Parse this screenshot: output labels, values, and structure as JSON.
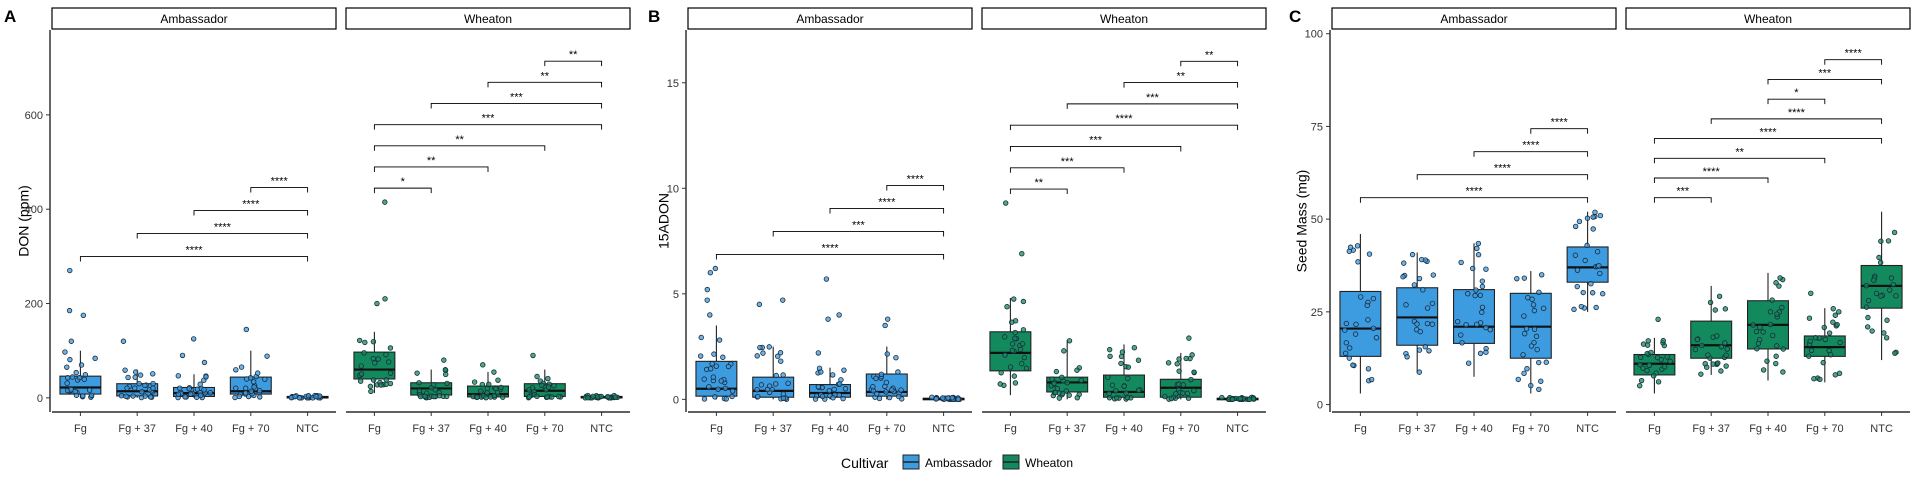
{
  "legend": {
    "title": "Cultivar",
    "items": [
      {
        "label": "Ambassador",
        "color": "#3d9be0"
      },
      {
        "label": "Wheaton",
        "color": "#138a5e"
      }
    ]
  },
  "chart_data": [
    {
      "type": "boxplot",
      "panel": "A",
      "ylabel": "DON (ppm)",
      "ylim": [
        -30,
        780
      ],
      "yticks": [
        0,
        200,
        400,
        600
      ],
      "facets": [
        "Ambassador",
        "Wheaton"
      ],
      "categories": [
        "Fg",
        "Fg + 37",
        "Fg + 40",
        "Fg + 70",
        "NTC"
      ],
      "boxes": [
        {
          "facet": "Ambassador",
          "category": "Fg",
          "q1": 8,
          "median": 22,
          "q3": 46,
          "lower_whisker": 0,
          "upper_whisker": 100,
          "outliers": [
            120,
            175,
            185,
            270
          ]
        },
        {
          "facet": "Ambassador",
          "category": "Fg + 37",
          "q1": 4,
          "median": 14,
          "q3": 30,
          "lower_whisker": 0,
          "upper_whisker": 60,
          "outliers": [
            120
          ]
        },
        {
          "facet": "Ambassador",
          "category": "Fg + 40",
          "q1": 3,
          "median": 10,
          "q3": 22,
          "lower_whisker": 0,
          "upper_whisker": 50,
          "outliers": [
            75,
            90,
            125
          ]
        },
        {
          "facet": "Ambassador",
          "category": "Fg + 70",
          "q1": 8,
          "median": 14,
          "q3": 44,
          "lower_whisker": 0,
          "upper_whisker": 100,
          "outliers": [
            145
          ]
        },
        {
          "facet": "Ambassador",
          "category": "NTC",
          "q1": 0,
          "median": 1,
          "q3": 3,
          "lower_whisker": 0,
          "upper_whisker": 5,
          "outliers": []
        },
        {
          "facet": "Wheaton",
          "category": "Fg",
          "q1": 40,
          "median": 60,
          "q3": 97,
          "lower_whisker": 10,
          "upper_whisker": 140,
          "outliers": [
            200,
            210,
            415
          ]
        },
        {
          "facet": "Wheaton",
          "category": "Fg + 37",
          "q1": 6,
          "median": 20,
          "q3": 32,
          "lower_whisker": 0,
          "upper_whisker": 60,
          "outliers": [
            80
          ]
        },
        {
          "facet": "Wheaton",
          "category": "Fg + 40",
          "q1": 2,
          "median": 8,
          "q3": 25,
          "lower_whisker": 0,
          "upper_whisker": 55,
          "outliers": [
            70
          ]
        },
        {
          "facet": "Wheaton",
          "category": "Fg + 70",
          "q1": 3,
          "median": 15,
          "q3": 30,
          "lower_whisker": 0,
          "upper_whisker": 60,
          "outliers": [
            90
          ]
        },
        {
          "facet": "Wheaton",
          "category": "NTC",
          "q1": 0,
          "median": 1,
          "q3": 3,
          "lower_whisker": 0,
          "upper_whisker": 5,
          "outliers": []
        }
      ],
      "significance": [
        {
          "facet": "Ambassador",
          "from": "Fg",
          "to": "NTC",
          "label": "****"
        },
        {
          "facet": "Ambassador",
          "from": "Fg + 37",
          "to": "NTC",
          "label": "****"
        },
        {
          "facet": "Ambassador",
          "from": "Fg + 40",
          "to": "NTC",
          "label": "****"
        },
        {
          "facet": "Ambassador",
          "from": "Fg + 70",
          "to": "NTC",
          "label": "****"
        },
        {
          "facet": "Wheaton",
          "from": "Fg",
          "to": "Fg + 37",
          "label": "*"
        },
        {
          "facet": "Wheaton",
          "from": "Fg",
          "to": "Fg + 40",
          "label": "**"
        },
        {
          "facet": "Wheaton",
          "from": "Fg",
          "to": "Fg + 70",
          "label": "**"
        },
        {
          "facet": "Wheaton",
          "from": "Fg",
          "to": "NTC",
          "label": "***"
        },
        {
          "facet": "Wheaton",
          "from": "Fg + 37",
          "to": "NTC",
          "label": "***"
        },
        {
          "facet": "Wheaton",
          "from": "Fg + 40",
          "to": "NTC",
          "label": "**"
        },
        {
          "facet": "Wheaton",
          "from": "Fg + 70",
          "to": "NTC",
          "label": "**"
        }
      ]
    },
    {
      "type": "boxplot",
      "panel": "B",
      "ylabel": "15ADON",
      "ylim": [
        -0.6,
        17.5
      ],
      "yticks": [
        0,
        5,
        10,
        15
      ],
      "facets": [
        "Ambassador",
        "Wheaton"
      ],
      "categories": [
        "Fg",
        "Fg + 37",
        "Fg + 40",
        "Fg + 70",
        "NTC"
      ],
      "boxes": [
        {
          "facet": "Ambassador",
          "category": "Fg",
          "q1": 0.15,
          "median": 0.5,
          "q3": 1.8,
          "lower_whisker": 0,
          "upper_whisker": 3.5,
          "outliers": [
            4.0,
            4.7,
            5.2,
            6.0,
            6.2
          ]
        },
        {
          "facet": "Ambassador",
          "category": "Fg + 37",
          "q1": 0.1,
          "median": 0.4,
          "q3": 1.05,
          "lower_whisker": 0,
          "upper_whisker": 2.5,
          "outliers": [
            4.5,
            4.7
          ]
        },
        {
          "facet": "Ambassador",
          "category": "Fg + 40",
          "q1": 0.1,
          "median": 0.3,
          "q3": 0.7,
          "lower_whisker": 0,
          "upper_whisker": 1.5,
          "outliers": [
            2.2,
            3.8,
            4.0,
            5.7
          ]
        },
        {
          "facet": "Ambassador",
          "category": "Fg + 70",
          "q1": 0.15,
          "median": 0.35,
          "q3": 1.2,
          "lower_whisker": 0,
          "upper_whisker": 2.5,
          "outliers": [
            3.5,
            3.8
          ]
        },
        {
          "facet": "Ambassador",
          "category": "NTC",
          "q1": 0,
          "median": 0.02,
          "q3": 0.05,
          "lower_whisker": 0,
          "upper_whisker": 0.1,
          "outliers": []
        },
        {
          "facet": "Wheaton",
          "category": "Fg",
          "q1": 1.35,
          "median": 2.2,
          "q3": 3.2,
          "lower_whisker": 0.2,
          "upper_whisker": 4.8,
          "outliers": [
            6.9,
            9.3
          ]
        },
        {
          "facet": "Wheaton",
          "category": "Fg + 37",
          "q1": 0.35,
          "median": 0.8,
          "q3": 1.05,
          "lower_whisker": 0,
          "upper_whisker": 2.8,
          "outliers": []
        },
        {
          "facet": "Wheaton",
          "category": "Fg + 40",
          "q1": 0.1,
          "median": 0.35,
          "q3": 1.15,
          "lower_whisker": 0,
          "upper_whisker": 2.6,
          "outliers": []
        },
        {
          "facet": "Wheaton",
          "category": "Fg + 70",
          "q1": 0.1,
          "median": 0.55,
          "q3": 0.95,
          "lower_whisker": 0,
          "upper_whisker": 2.2,
          "outliers": [
            2.9
          ]
        },
        {
          "facet": "Wheaton",
          "category": "NTC",
          "q1": 0,
          "median": 0.02,
          "q3": 0.05,
          "lower_whisker": 0,
          "upper_whisker": 0.1,
          "outliers": []
        }
      ],
      "significance": [
        {
          "facet": "Ambassador",
          "from": "Fg",
          "to": "NTC",
          "label": "****"
        },
        {
          "facet": "Ambassador",
          "from": "Fg + 37",
          "to": "NTC",
          "label": "***"
        },
        {
          "facet": "Ambassador",
          "from": "Fg + 40",
          "to": "NTC",
          "label": "****"
        },
        {
          "facet": "Ambassador",
          "from": "Fg + 70",
          "to": "NTC",
          "label": "****"
        },
        {
          "facet": "Wheaton",
          "from": "Fg",
          "to": "Fg + 37",
          "label": "**"
        },
        {
          "facet": "Wheaton",
          "from": "Fg",
          "to": "Fg + 40",
          "label": "***"
        },
        {
          "facet": "Wheaton",
          "from": "Fg",
          "to": "Fg + 70",
          "label": "***"
        },
        {
          "facet": "Wheaton",
          "from": "Fg",
          "to": "NTC",
          "label": "****"
        },
        {
          "facet": "Wheaton",
          "from": "Fg + 37",
          "to": "NTC",
          "label": "***"
        },
        {
          "facet": "Wheaton",
          "from": "Fg + 40",
          "to": "NTC",
          "label": "**"
        },
        {
          "facet": "Wheaton",
          "from": "Fg + 70",
          "to": "NTC",
          "label": "**"
        }
      ]
    },
    {
      "type": "boxplot",
      "panel": "C",
      "ylabel": "Seed Mass (mg)",
      "ylim": [
        -2,
        101
      ],
      "yticks": [
        0,
        25,
        50,
        75,
        100
      ],
      "facets": [
        "Ambassador",
        "Wheaton"
      ],
      "categories": [
        "Fg",
        "Fg + 37",
        "Fg + 40",
        "Fg + 70",
        "NTC"
      ],
      "boxes": [
        {
          "facet": "Ambassador",
          "category": "Fg",
          "q1": 13,
          "median": 20.5,
          "q3": 30.5,
          "lower_whisker": 3,
          "upper_whisker": 46,
          "outliers": []
        },
        {
          "facet": "Ambassador",
          "category": "Fg + 37",
          "q1": 16,
          "median": 23.5,
          "q3": 31.5,
          "lower_whisker": 8.5,
          "upper_whisker": 41,
          "outliers": []
        },
        {
          "facet": "Ambassador",
          "category": "Fg + 40",
          "q1": 16.5,
          "median": 21,
          "q3": 31,
          "lower_whisker": 7.5,
          "upper_whisker": 43.5,
          "outliers": []
        },
        {
          "facet": "Ambassador",
          "category": "Fg + 70",
          "q1": 12.5,
          "median": 21,
          "q3": 30,
          "lower_whisker": 3,
          "upper_whisker": 36,
          "outliers": []
        },
        {
          "facet": "Ambassador",
          "category": "NTC",
          "q1": 33,
          "median": 37,
          "q3": 42.5,
          "lower_whisker": 25,
          "upper_whisker": 52,
          "outliers": []
        },
        {
          "facet": "Wheaton",
          "category": "Fg",
          "q1": 8,
          "median": 11,
          "q3": 13.5,
          "lower_whisker": 3,
          "upper_whisker": 18,
          "outliers": [
            23
          ]
        },
        {
          "facet": "Wheaton",
          "category": "Fg + 37",
          "q1": 12.5,
          "median": 16,
          "q3": 22.5,
          "lower_whisker": 8,
          "upper_whisker": 32,
          "outliers": []
        },
        {
          "facet": "Wheaton",
          "category": "Fg + 40",
          "q1": 15,
          "median": 21.5,
          "q3": 28,
          "lower_whisker": 6.5,
          "upper_whisker": 35.5,
          "outliers": []
        },
        {
          "facet": "Wheaton",
          "category": "Fg + 70",
          "q1": 13,
          "median": 15.5,
          "q3": 18.5,
          "lower_whisker": 6,
          "upper_whisker": 26,
          "outliers": [
            30
          ]
        },
        {
          "facet": "Wheaton",
          "category": "NTC",
          "q1": 26,
          "median": 32,
          "q3": 37.5,
          "lower_whisker": 12,
          "upper_whisker": 52,
          "outliers": []
        }
      ],
      "significance": [
        {
          "facet": "Ambassador",
          "from": "Fg",
          "to": "NTC",
          "label": "****"
        },
        {
          "facet": "Ambassador",
          "from": "Fg + 37",
          "to": "NTC",
          "label": "****"
        },
        {
          "facet": "Ambassador",
          "from": "Fg + 40",
          "to": "NTC",
          "label": "****"
        },
        {
          "facet": "Ambassador",
          "from": "Fg + 70",
          "to": "NTC",
          "label": "****"
        },
        {
          "facet": "Wheaton",
          "from": "Fg",
          "to": "Fg + 37",
          "label": "***"
        },
        {
          "facet": "Wheaton",
          "from": "Fg",
          "to": "Fg + 40",
          "label": "****"
        },
        {
          "facet": "Wheaton",
          "from": "Fg",
          "to": "Fg + 70",
          "label": "**"
        },
        {
          "facet": "Wheaton",
          "from": "Fg",
          "to": "NTC",
          "label": "****"
        },
        {
          "facet": "Wheaton",
          "from": "Fg + 37",
          "to": "NTC",
          "label": "****"
        },
        {
          "facet": "Wheaton",
          "from": "Fg + 40",
          "to": "Fg + 70",
          "label": "*"
        },
        {
          "facet": "Wheaton",
          "from": "Fg + 40",
          "to": "NTC",
          "label": "***"
        },
        {
          "facet": "Wheaton",
          "from": "Fg + 70",
          "to": "NTC",
          "label": "****"
        }
      ]
    }
  ]
}
